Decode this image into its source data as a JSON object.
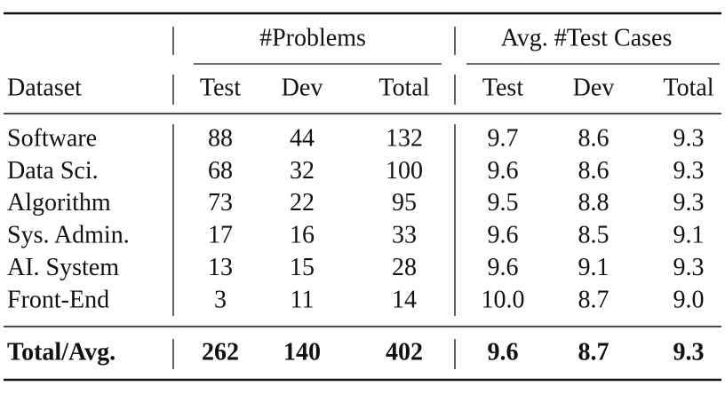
{
  "table": {
    "group_headers": [
      "#Problems",
      "Avg. #Test Cases"
    ],
    "columns": [
      "Dataset",
      "Test",
      "Dev",
      "Total",
      "Test",
      "Dev",
      "Total"
    ],
    "rows": [
      [
        "Software",
        "88",
        "44",
        "132",
        "9.7",
        "8.6",
        "9.3"
      ],
      [
        "Data Sci.",
        "68",
        "32",
        "100",
        "9.6",
        "8.6",
        "9.3"
      ],
      [
        "Algorithm",
        "73",
        "22",
        "95",
        "9.5",
        "8.8",
        "9.3"
      ],
      [
        "Sys. Admin.",
        "17",
        "16",
        "33",
        "9.6",
        "8.5",
        "9.1"
      ],
      [
        "AI. System",
        "13",
        "15",
        "28",
        "9.6",
        "9.1",
        "9.3"
      ],
      [
        "Front-End",
        "3",
        "11",
        "14",
        "10.0",
        "8.7",
        "9.0"
      ]
    ],
    "total_row": [
      "Total/Avg.",
      "262",
      "140",
      "402",
      "9.6",
      "8.7",
      "9.3"
    ]
  }
}
